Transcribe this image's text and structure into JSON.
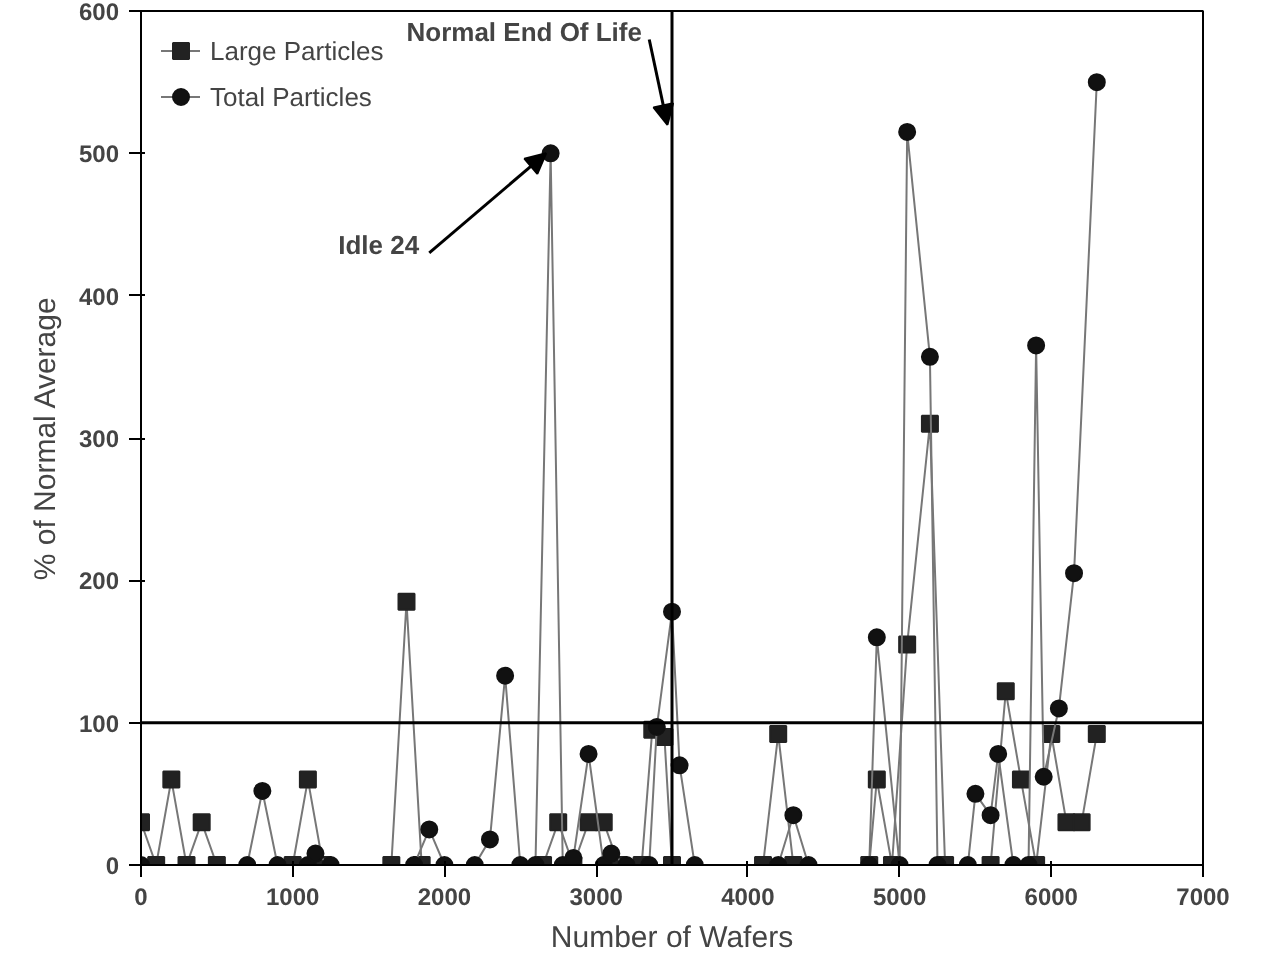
{
  "chart_data": {
    "type": "line",
    "xlabel": "Number of Wafers",
    "ylabel": "% of Normal Average",
    "xlim": [
      0,
      7000
    ],
    "ylim": [
      0,
      600
    ],
    "xticks": [
      0,
      1000,
      2000,
      3000,
      4000,
      5000,
      6000,
      7000
    ],
    "yticks": [
      0,
      100,
      200,
      300,
      400,
      500,
      600
    ],
    "grid": false,
    "legend": "top left",
    "series": [
      {
        "name": "Large Particles",
        "color": "#222222",
        "marker": "square",
        "x": [
          0,
          100,
          200,
          300,
          400,
          500,
          1000,
          1100,
          1200,
          1650,
          1750,
          1850,
          2650,
          2750,
          2850,
          2950,
          3050,
          3150,
          3300,
          3370,
          3450,
          3500,
          4100,
          4200,
          4300,
          4800,
          4850,
          4950,
          5050,
          5200,
          5300,
          5600,
          5700,
          5800,
          5900,
          6000,
          6100,
          6200,
          6300
        ],
        "values": [
          30,
          0,
          60,
          0,
          30,
          0,
          0,
          60,
          0,
          0,
          185,
          0,
          0,
          30,
          0,
          30,
          30,
          0,
          0,
          95,
          90,
          0,
          0,
          92,
          0,
          0,
          60,
          0,
          155,
          310,
          0,
          0,
          122,
          60,
          0,
          92,
          30,
          30,
          92
        ]
      },
      {
        "name": "Total Particles",
        "color": "#111111",
        "marker": "circle",
        "x": [
          0,
          700,
          800,
          900,
          1100,
          1150,
          1250,
          1800,
          1900,
          2000,
          2200,
          2300,
          2400,
          2500,
          2600,
          2700,
          2780,
          2850,
          2950,
          3050,
          3100,
          3200,
          3350,
          3400,
          3500,
          3550,
          3650,
          4200,
          4300,
          4400,
          4800,
          4850,
          5000,
          5050,
          5200,
          5250,
          5450,
          5500,
          5600,
          5650,
          5750,
          5850,
          5900,
          5950,
          6050,
          6150,
          6300
        ],
        "values": [
          0,
          0,
          52,
          0,
          0,
          8,
          0,
          0,
          25,
          0,
          0,
          18,
          133,
          0,
          0,
          500,
          0,
          5,
          78,
          0,
          8,
          0,
          0,
          97,
          178,
          70,
          0,
          0,
          35,
          0,
          0,
          160,
          0,
          515,
          357,
          0,
          0,
          50,
          35,
          78,
          0,
          0,
          365,
          62,
          110,
          205,
          550
        ]
      }
    ],
    "ref_lines": [
      {
        "axis": "x",
        "value": 3500,
        "color": "#000000"
      },
      {
        "axis": "y",
        "value": 100,
        "color": "#000000"
      }
    ],
    "annotations": [
      {
        "text": "Normal End Of Life",
        "x": 3500,
        "y": 520
      },
      {
        "text": "Idle 24",
        "x": 2700,
        "y": 500
      }
    ]
  }
}
